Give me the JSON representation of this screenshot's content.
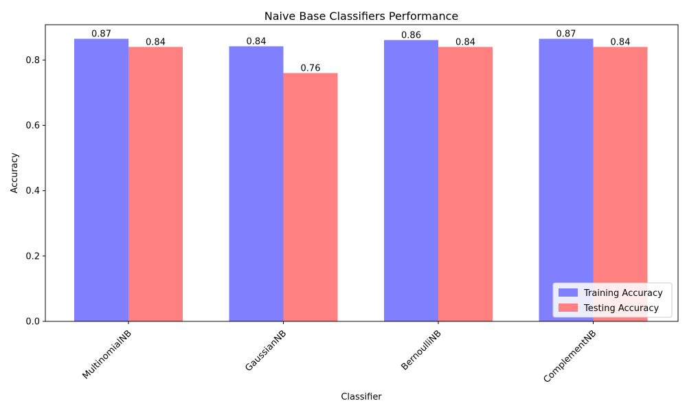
{
  "chart_data": {
    "type": "bar",
    "title": "Naive Base Classifiers Performance",
    "xlabel": "Classifier",
    "ylabel": "Accuracy",
    "categories": [
      "MultinomialNB",
      "GaussianNB",
      "BernoulliNB",
      "ComplementNB"
    ],
    "series": [
      {
        "name": "Training Accuracy",
        "values": [
          0.865,
          0.842,
          0.861,
          0.865
        ],
        "labels": [
          "0.87",
          "0.84",
          "0.86",
          "0.87"
        ],
        "color": "#8080ff"
      },
      {
        "name": "Testing Accuracy",
        "values": [
          0.84,
          0.76,
          0.84,
          0.84
        ],
        "labels": [
          "0.84",
          "0.76",
          "0.84",
          "0.84"
        ],
        "color": "#ff8080"
      }
    ],
    "ylim": [
      0,
      0.908
    ],
    "yticks": [
      0.0,
      0.2,
      0.4,
      0.6,
      0.8
    ],
    "ytick_labels": [
      "0.0",
      "0.2",
      "0.4",
      "0.6",
      "0.8"
    ],
    "legend_position": "lower-right",
    "grid": false,
    "xtick_rotation": 45
  }
}
